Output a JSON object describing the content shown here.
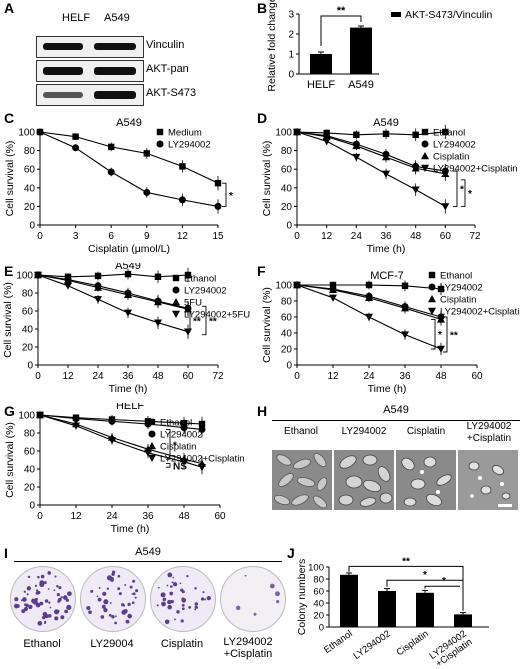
{
  "panels": {
    "A": "A",
    "B": "B",
    "C": "C",
    "D": "D",
    "E": "E",
    "F": "F",
    "G": "G",
    "H": "H",
    "I": "I",
    "J": "J"
  },
  "colors": {
    "primary": "#000000",
    "bar": "#000000",
    "microscopy": "#8f8f8f",
    "stain": "#6b4c9a"
  },
  "panelA": {
    "columns": [
      "HELF",
      "A549"
    ],
    "bands": [
      "Vinculin",
      "AKT-pan",
      "AKT-S473"
    ]
  },
  "chart_data": [
    {
      "id": "B",
      "type": "bar",
      "categories": [
        "HELF",
        "A549"
      ],
      "values": [
        1.0,
        2.32
      ],
      "errors": [
        0.1,
        0.08
      ],
      "ylabel": "Relative fold change",
      "ylim": [
        0,
        3
      ],
      "yticks": [
        "0",
        "1",
        "2",
        "3"
      ],
      "legend": "AKT-S473/Vinculin",
      "significance": "**"
    },
    {
      "id": "C",
      "type": "line",
      "title": "A549",
      "xlabel": "Cisplatin (μmol/L)",
      "ylabel": "Cell survival (%)",
      "x": [
        0,
        3,
        6,
        9,
        12,
        15
      ],
      "xticks": [
        "0",
        "3",
        "6",
        "9",
        "12",
        "15"
      ],
      "ylim": [
        0,
        100
      ],
      "yticks": [
        "0",
        "20",
        "40",
        "60",
        "80",
        "100"
      ],
      "series": [
        {
          "name": "Medium",
          "marker": "square",
          "values": [
            100,
            95,
            84,
            77,
            63,
            45
          ]
        },
        {
          "name": "LY294002",
          "marker": "circle",
          "values": [
            100,
            83,
            57,
            35,
            27,
            20
          ]
        }
      ],
      "significance": "*"
    },
    {
      "id": "D",
      "type": "line",
      "title": "A549",
      "xlabel": "Time (h)",
      "ylabel": "Cell survival (%)",
      "x": [
        0,
        12,
        24,
        36,
        48,
        60
      ],
      "xticks": [
        "0",
        "12",
        "24",
        "36",
        "48",
        "60",
        "72"
      ],
      "xlim": [
        0,
        72
      ],
      "ylim": [
        0,
        100
      ],
      "yticks": [
        "0",
        "20",
        "40",
        "60",
        "80",
        "100"
      ],
      "series": [
        {
          "name": "Ethanol",
          "marker": "square",
          "values": [
            100,
            99,
            97,
            98,
            97,
            100
          ]
        },
        {
          "name": "LY294002",
          "marker": "circle",
          "values": [
            100,
            96,
            87,
            76,
            63,
            58
          ]
        },
        {
          "name": "Cisplatin",
          "marker": "triangle",
          "values": [
            100,
            95,
            85,
            73,
            61,
            55
          ]
        },
        {
          "name": "LY294002+Cisplatin",
          "marker": "triangle-down",
          "values": [
            100,
            90,
            73,
            55,
            38,
            20
          ]
        }
      ],
      "significance": [
        "*",
        "*"
      ]
    },
    {
      "id": "E",
      "type": "line",
      "title": "A549",
      "xlabel": "Time (h)",
      "ylabel": "Cell survival (%)",
      "x": [
        0,
        12,
        24,
        36,
        48,
        60
      ],
      "xticks": [
        "0",
        "12",
        "24",
        "36",
        "48",
        "60",
        "72"
      ],
      "xlim": [
        0,
        72
      ],
      "ylim": [
        0,
        100
      ],
      "yticks": [
        "0",
        "20",
        "40",
        "60",
        "80",
        "100"
      ],
      "series": [
        {
          "name": "Ethanol",
          "marker": "square",
          "values": [
            100,
            98,
            99,
            101,
            98,
            100
          ]
        },
        {
          "name": "LY294002",
          "marker": "circle",
          "values": [
            100,
            95,
            88,
            80,
            71,
            63
          ]
        },
        {
          "name": "5FU",
          "marker": "triangle",
          "values": [
            100,
            94,
            86,
            78,
            70,
            62
          ]
        },
        {
          "name": "LY294002+5FU",
          "marker": "triangle-down",
          "values": [
            100,
            88,
            73,
            58,
            47,
            37
          ]
        }
      ],
      "significance": [
        "**",
        "**"
      ]
    },
    {
      "id": "F",
      "type": "line",
      "title": "MCF-7",
      "xlabel": "Time (h)",
      "ylabel": "Cell survival (%)",
      "x": [
        0,
        12,
        24,
        36,
        48
      ],
      "xticks": [
        "0",
        "12",
        "24",
        "36",
        "48",
        "60"
      ],
      "xlim": [
        0,
        60
      ],
      "ylim": [
        0,
        100
      ],
      "yticks": [
        "0",
        "20",
        "40",
        "60",
        "80",
        "100"
      ],
      "series": [
        {
          "name": "Ethanol",
          "marker": "square",
          "values": [
            100,
            100,
            100,
            99,
            95
          ]
        },
        {
          "name": "LY294002",
          "marker": "circle",
          "values": [
            100,
            95,
            86,
            73,
            60
          ]
        },
        {
          "name": "Cisplatin",
          "marker": "triangle",
          "values": [
            100,
            94,
            84,
            71,
            57
          ]
        },
        {
          "name": "LY294002+Cisplatin",
          "marker": "triangle-down",
          "values": [
            100,
            84,
            60,
            38,
            20
          ]
        }
      ],
      "significance": [
        "*",
        "**"
      ]
    },
    {
      "id": "G",
      "type": "line",
      "title": "HELF",
      "xlabel": "Time (h)",
      "ylabel": "Cell survival (%)",
      "x": [
        0,
        12,
        24,
        36,
        48,
        54
      ],
      "xticks": [
        "0",
        "12",
        "24",
        "36",
        "48",
        "60"
      ],
      "xlim": [
        0,
        60
      ],
      "ylim": [
        0,
        100
      ],
      "yticks": [
        "0",
        "20",
        "40",
        "60",
        "80",
        "100"
      ],
      "series": [
        {
          "name": "Ethanol",
          "marker": "square",
          "values": [
            100,
            97,
            95,
            93,
            91,
            90
          ]
        },
        {
          "name": "LY294002",
          "marker": "circle",
          "values": [
            100,
            96,
            93,
            90,
            86,
            84
          ]
        },
        {
          "name": "Cisplatin",
          "marker": "triangle",
          "values": [
            100,
            90,
            75,
            62,
            51,
            46
          ]
        },
        {
          "name": "LY294002+Cisplatin",
          "marker": "triangle-down",
          "values": [
            100,
            88,
            72,
            58,
            48,
            42
          ]
        }
      ],
      "significance": [
        "*",
        "NS"
      ]
    },
    {
      "id": "J",
      "type": "bar",
      "categories": [
        "Ethanol",
        "LY294002",
        "Cisplatin",
        "LY294002\n+Cisplatin"
      ],
      "values": [
        87,
        60,
        57,
        21
      ],
      "errors": [
        3,
        4,
        4,
        3
      ],
      "ylabel": "Colony numbers",
      "ylim": [
        0,
        100
      ],
      "yticks": [
        "0",
        "20",
        "40",
        "60",
        "80",
        "100"
      ],
      "significance": [
        "**",
        "*",
        "*"
      ]
    }
  ],
  "panelH": {
    "title": "A549",
    "labels": [
      "Ethanol",
      "LY294002",
      "Cisplatin",
      "LY294002\n+Cisplatin"
    ]
  },
  "panelI": {
    "title": "A549",
    "labels": [
      "Ethanol",
      "LY29004",
      "Cisplatin",
      "LY294002\n+Cisplatin"
    ]
  }
}
